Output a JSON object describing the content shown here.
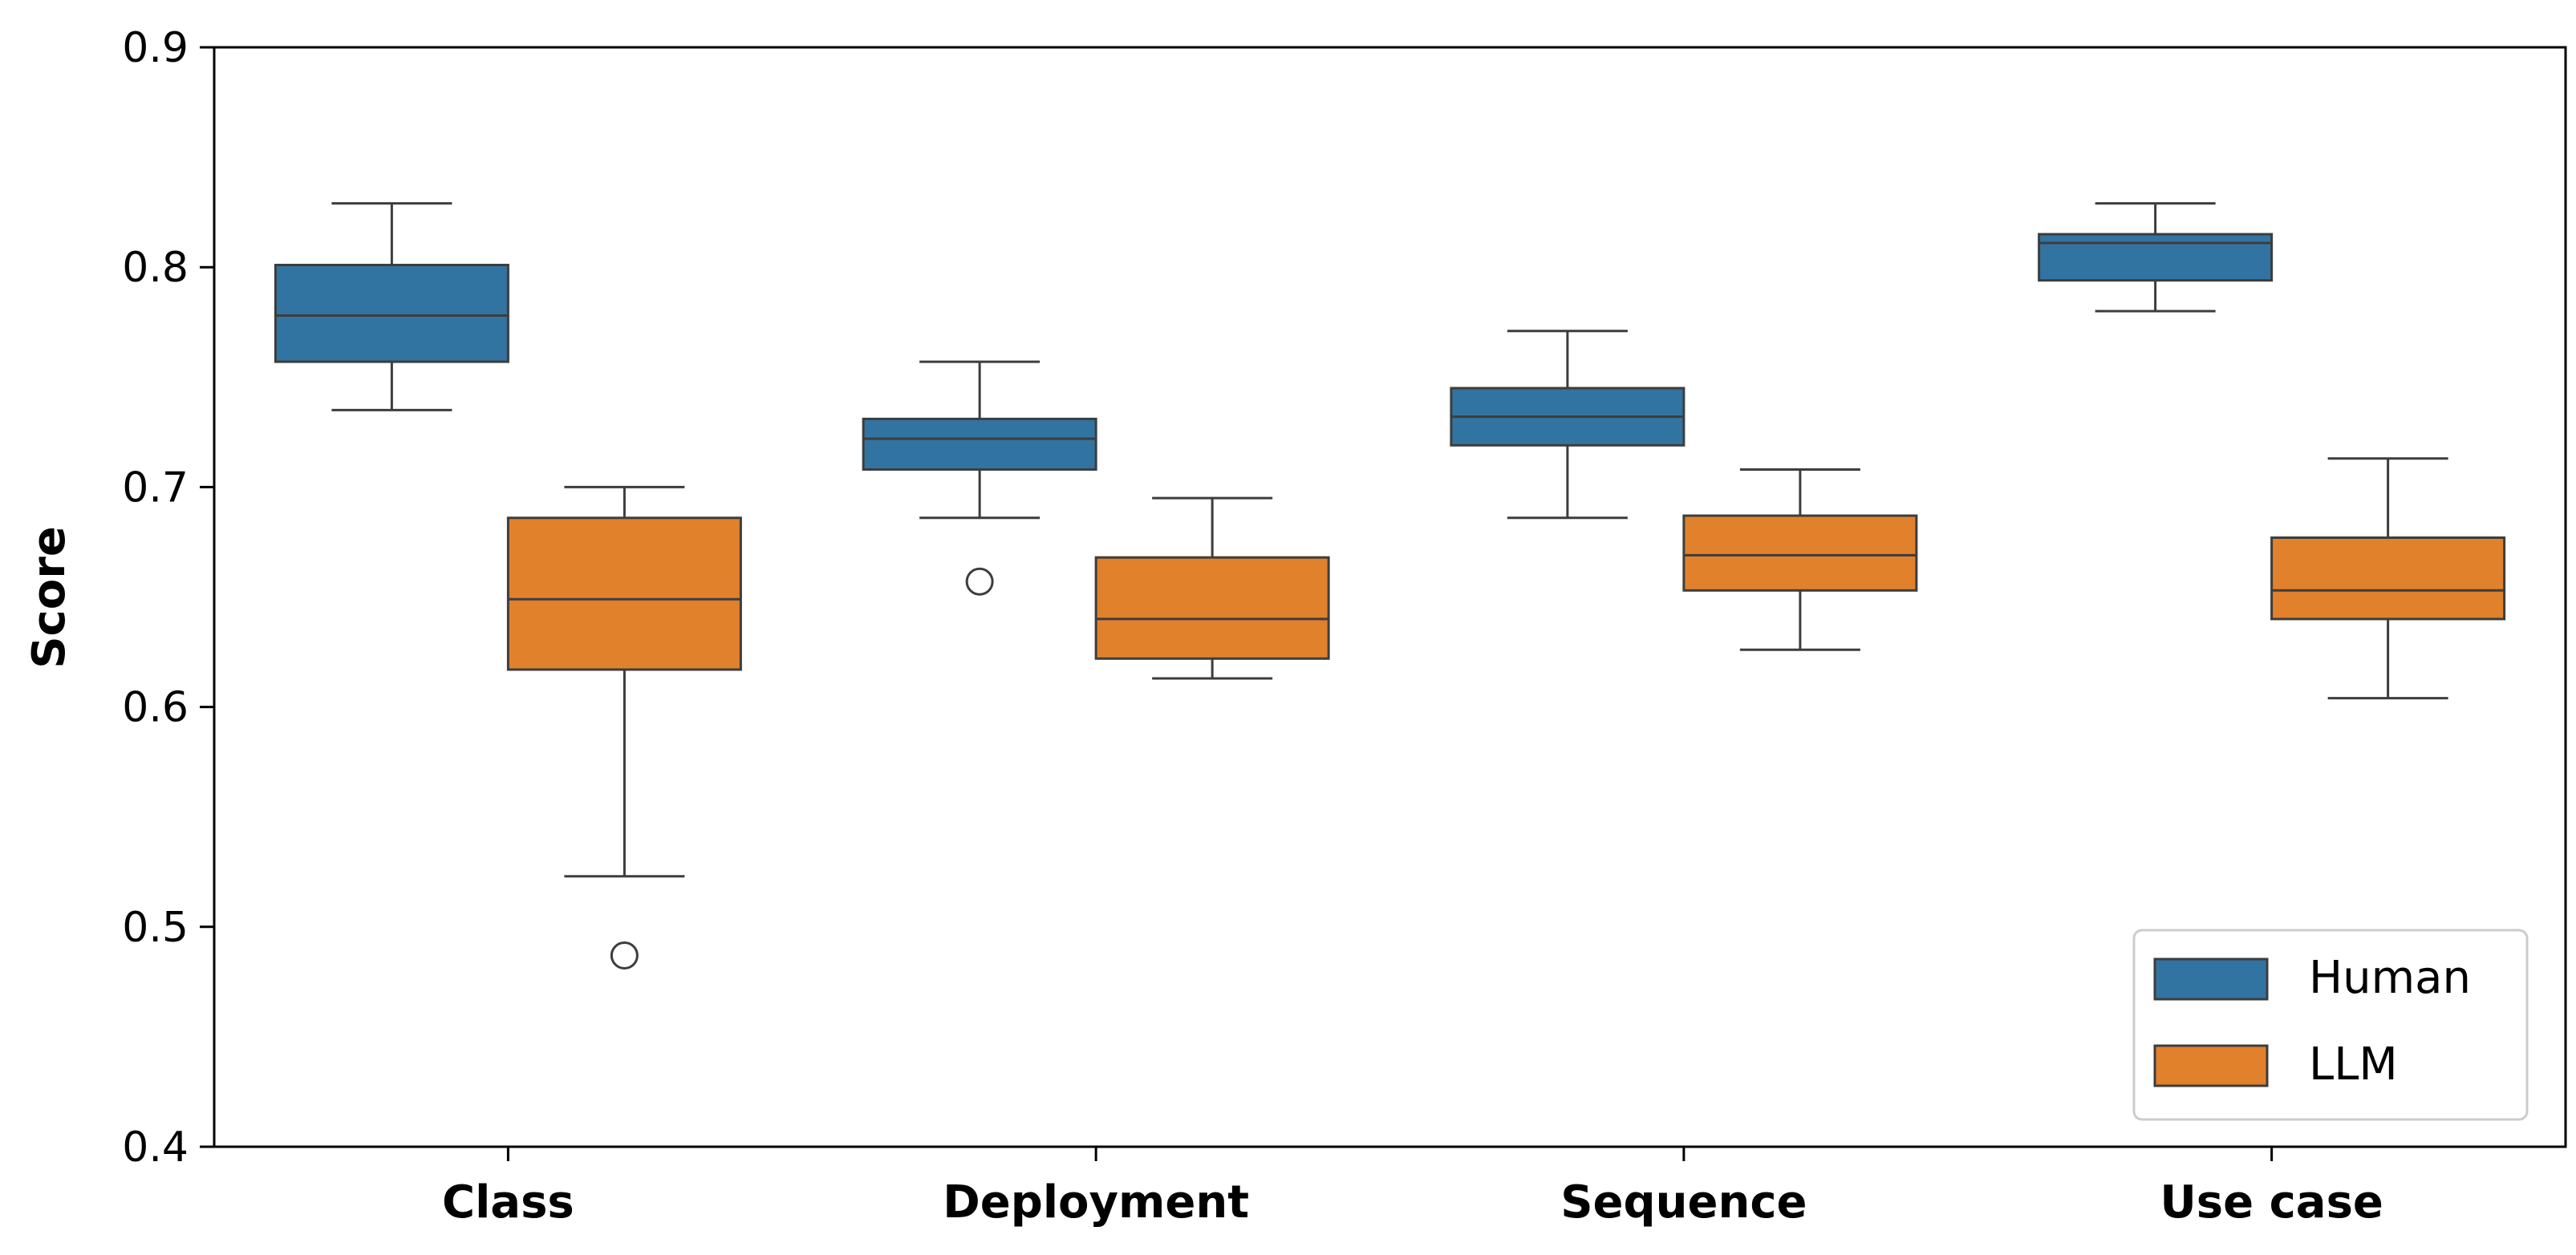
{
  "chart_data": {
    "type": "boxplot",
    "title": "",
    "xlabel": "",
    "ylabel": "Score",
    "ylim": [
      0.4,
      0.9
    ],
    "yticks": [
      "0.4",
      "0.5",
      "0.6",
      "0.7",
      "0.8",
      "0.9"
    ],
    "categories": [
      "Class",
      "Deployment",
      "Sequence",
      "Use case"
    ],
    "legend": {
      "position": "lower-right",
      "entries": [
        "Human",
        "LLM"
      ]
    },
    "series": [
      {
        "name": "Human",
        "color": "#3274a1",
        "boxes": [
          {
            "whisker_low": 0.735,
            "q1": 0.757,
            "median": 0.778,
            "q3": 0.801,
            "whisker_high": 0.829,
            "outliers": []
          },
          {
            "whisker_low": 0.686,
            "q1": 0.708,
            "median": 0.722,
            "q3": 0.731,
            "whisker_high": 0.757,
            "outliers": [
              0.657
            ]
          },
          {
            "whisker_low": 0.686,
            "q1": 0.719,
            "median": 0.732,
            "q3": 0.745,
            "whisker_high": 0.771,
            "outliers": []
          },
          {
            "whisker_low": 0.78,
            "q1": 0.794,
            "median": 0.811,
            "q3": 0.815,
            "whisker_high": 0.829,
            "outliers": []
          }
        ]
      },
      {
        "name": "LLM",
        "color": "#e1812c",
        "boxes": [
          {
            "whisker_low": 0.523,
            "q1": 0.617,
            "median": 0.649,
            "q3": 0.686,
            "whisker_high": 0.7,
            "outliers": [
              0.487
            ]
          },
          {
            "whisker_low": 0.613,
            "q1": 0.622,
            "median": 0.64,
            "q3": 0.668,
            "whisker_high": 0.695,
            "outliers": []
          },
          {
            "whisker_low": 0.626,
            "q1": 0.653,
            "median": 0.669,
            "q3": 0.687,
            "whisker_high": 0.708,
            "outliers": []
          },
          {
            "whisker_low": 0.604,
            "q1": 0.64,
            "median": 0.653,
            "q3": 0.677,
            "whisker_high": 0.713,
            "outliers": []
          }
        ]
      }
    ]
  }
}
